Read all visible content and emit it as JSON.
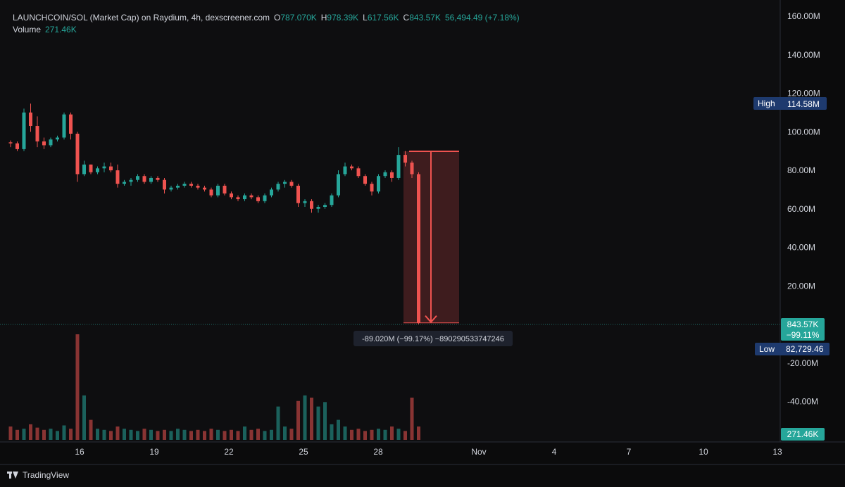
{
  "header": {
    "symbol": "LAUNCHCOIN/SOL (Market Cap) on Raydium, 4h, dexscreener.com",
    "o_label": "O",
    "o_value": "787.070K",
    "h_label": "H",
    "h_value": "978.39K",
    "l_label": "L",
    "l_value": "617.56K",
    "c_label": "C",
    "c_value": "843.57K",
    "change": "56,494.49 (+7.18%)",
    "volume_label": "Volume",
    "volume_value": "271.46K"
  },
  "colors": {
    "up": "#26a69a",
    "down": "#ef5350",
    "background": "#0b0b0c",
    "axis_text": "#d1d4dc",
    "high_low_tag": "#1e3a6e",
    "measure_fill": "#ef5350"
  },
  "chart_data": {
    "type": "candlestick",
    "interval": "4h",
    "price_axis_ticks": [
      "160.00M",
      "140.00M",
      "120.00M",
      "100.00M",
      "80.00M",
      "60.00M",
      "40.00M",
      "20.00M",
      "-20.00M",
      "-40.00M"
    ],
    "price_axis_values": [
      160,
      140,
      120,
      100,
      80,
      60,
      40,
      20,
      -20,
      -40
    ],
    "time_axis_ticks": [
      "16",
      "19",
      "22",
      "25",
      "28",
      "Nov",
      "4",
      "7",
      "10",
      "13"
    ],
    "y_unit": "M",
    "ylim": [
      -50,
      165
    ],
    "candles": [
      {
        "o": 94.5,
        "h": 95.5,
        "l": 92,
        "c": 94
      },
      {
        "o": 94,
        "h": 95,
        "l": 90,
        "c": 91
      },
      {
        "o": 91,
        "h": 112,
        "l": 90,
        "c": 110
      },
      {
        "o": 110,
        "h": 114.6,
        "l": 100,
        "c": 103
      },
      {
        "o": 103,
        "h": 108,
        "l": 92,
        "c": 95
      },
      {
        "o": 95,
        "h": 97,
        "l": 91,
        "c": 93
      },
      {
        "o": 93,
        "h": 97,
        "l": 92,
        "c": 96
      },
      {
        "o": 96,
        "h": 98,
        "l": 95,
        "c": 97
      },
      {
        "o": 97,
        "h": 110,
        "l": 96,
        "c": 109
      },
      {
        "o": 109,
        "h": 110,
        "l": 96,
        "c": 99
      },
      {
        "o": 99,
        "h": 100,
        "l": 74,
        "c": 78
      },
      {
        "o": 78,
        "h": 85,
        "l": 77,
        "c": 83
      },
      {
        "o": 83,
        "h": 83,
        "l": 78,
        "c": 79
      },
      {
        "o": 79,
        "h": 82,
        "l": 78,
        "c": 81
      },
      {
        "o": 81,
        "h": 84,
        "l": 79,
        "c": 82
      },
      {
        "o": 82,
        "h": 84,
        "l": 79,
        "c": 80
      },
      {
        "o": 80,
        "h": 83,
        "l": 71,
        "c": 73
      },
      {
        "o": 73,
        "h": 75,
        "l": 72,
        "c": 74
      },
      {
        "o": 74,
        "h": 76,
        "l": 72,
        "c": 75
      },
      {
        "o": 75,
        "h": 78,
        "l": 74,
        "c": 77
      },
      {
        "o": 77,
        "h": 78,
        "l": 73,
        "c": 74
      },
      {
        "o": 74,
        "h": 77,
        "l": 73,
        "c": 76
      },
      {
        "o": 76,
        "h": 77,
        "l": 74,
        "c": 75
      },
      {
        "o": 75,
        "h": 76,
        "l": 68,
        "c": 70
      },
      {
        "o": 70,
        "h": 72,
        "l": 69,
        "c": 71
      },
      {
        "o": 71,
        "h": 73,
        "l": 70,
        "c": 72
      },
      {
        "o": 72,
        "h": 74,
        "l": 71,
        "c": 73
      },
      {
        "o": 73,
        "h": 74,
        "l": 71,
        "c": 72
      },
      {
        "o": 72,
        "h": 73,
        "l": 70,
        "c": 71
      },
      {
        "o": 71,
        "h": 72,
        "l": 69,
        "c": 70
      },
      {
        "o": 70,
        "h": 71,
        "l": 66,
        "c": 67
      },
      {
        "o": 67,
        "h": 73,
        "l": 66,
        "c": 72
      },
      {
        "o": 72,
        "h": 73,
        "l": 67,
        "c": 68
      },
      {
        "o": 68,
        "h": 69,
        "l": 65,
        "c": 66
      },
      {
        "o": 66,
        "h": 67,
        "l": 64,
        "c": 65
      },
      {
        "o": 65,
        "h": 68,
        "l": 64,
        "c": 67
      },
      {
        "o": 67,
        "h": 68,
        "l": 65,
        "c": 66
      },
      {
        "o": 66,
        "h": 67,
        "l": 63,
        "c": 64
      },
      {
        "o": 64,
        "h": 68,
        "l": 63,
        "c": 67
      },
      {
        "o": 67,
        "h": 71,
        "l": 66,
        "c": 70
      },
      {
        "o": 70,
        "h": 74,
        "l": 69,
        "c": 73
      },
      {
        "o": 73,
        "h": 75,
        "l": 71,
        "c": 74
      },
      {
        "o": 74,
        "h": 75,
        "l": 71,
        "c": 72
      },
      {
        "o": 72,
        "h": 73,
        "l": 61,
        "c": 63
      },
      {
        "o": 63,
        "h": 65,
        "l": 61,
        "c": 64
      },
      {
        "o": 64,
        "h": 65,
        "l": 58,
        "c": 60
      },
      {
        "o": 60,
        "h": 62,
        "l": 58,
        "c": 61
      },
      {
        "o": 61,
        "h": 63,
        "l": 60,
        "c": 62
      },
      {
        "o": 62,
        "h": 68,
        "l": 61,
        "c": 67
      },
      {
        "o": 67,
        "h": 80,
        "l": 66,
        "c": 78
      },
      {
        "o": 78,
        "h": 84,
        "l": 77,
        "c": 82
      },
      {
        "o": 82,
        "h": 83,
        "l": 80,
        "c": 81
      },
      {
        "o": 81,
        "h": 82,
        "l": 76,
        "c": 77
      },
      {
        "o": 77,
        "h": 78,
        "l": 72,
        "c": 73
      },
      {
        "o": 73,
        "h": 74,
        "l": 67,
        "c": 69
      },
      {
        "o": 69,
        "h": 78,
        "l": 68,
        "c": 77
      },
      {
        "o": 77,
        "h": 80,
        "l": 76,
        "c": 79
      },
      {
        "o": 79,
        "h": 80,
        "l": 74,
        "c": 76
      },
      {
        "o": 76,
        "h": 92,
        "l": 75,
        "c": 88
      },
      {
        "o": 88,
        "h": 90,
        "l": 82,
        "c": 84
      },
      {
        "o": 84,
        "h": 85,
        "l": 76,
        "c": 78
      },
      {
        "o": 78,
        "h": 79,
        "l": 0.08,
        "c": 0.84
      }
    ],
    "volume_unit": "K",
    "volumes": [
      12,
      9,
      10,
      14,
      11,
      9,
      10,
      8,
      13,
      10,
      95,
      40,
      18,
      10,
      9,
      8,
      12,
      10,
      9,
      8,
      10,
      9,
      8,
      9,
      8,
      10,
      9,
      8,
      9,
      8,
      10,
      9,
      8,
      9,
      8,
      12,
      9,
      10,
      8,
      9,
      30,
      12,
      10,
      35,
      40,
      38,
      30,
      34,
      14,
      18,
      12,
      9,
      10,
      8,
      9,
      10,
      9,
      12,
      10,
      8,
      38,
      12
    ],
    "measure": {
      "label": "-89.020M (−99.17%) −890290533747246",
      "from_value": 89.86,
      "to_value": 0.84
    },
    "high_tag": {
      "label": "High",
      "value": "114.58M"
    },
    "low_tag": {
      "label": "Low",
      "value": "82,729.46"
    },
    "last_price_tag": {
      "value": "843.57K",
      "change": "−99.11%"
    },
    "last_volume_tag": {
      "value": "271.46K"
    }
  },
  "footer": {
    "brand": "TradingView"
  }
}
